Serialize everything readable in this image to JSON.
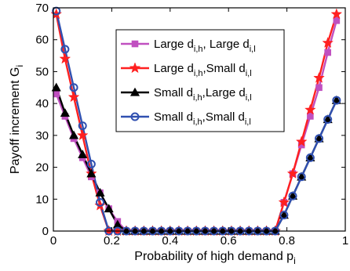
{
  "chart_data": {
    "type": "line",
    "xlabel": "Probability of high demand p",
    "xlabel_sub": "i",
    "ylabel": "Payoff increment G",
    "ylabel_sub": "i",
    "xlim": [
      0,
      1
    ],
    "ylim": [
      0,
      70
    ],
    "xticks": [
      0,
      0.2,
      0.4,
      0.6,
      0.8,
      1
    ],
    "xtick_labels": [
      "0",
      "0.2",
      "0.4",
      "0.6",
      "0.8",
      "1"
    ],
    "yticks": [
      0,
      10,
      20,
      30,
      40,
      50,
      60,
      70
    ],
    "ytick_labels": [
      "0",
      "10",
      "20",
      "30",
      "40",
      "50",
      "60",
      "70"
    ],
    "grid": false,
    "legend_position": "top-center",
    "x": [
      0.01,
      0.04,
      0.07,
      0.1,
      0.13,
      0.16,
      0.19,
      0.22,
      0.25,
      0.28,
      0.31,
      0.34,
      0.37,
      0.4,
      0.43,
      0.46,
      0.49,
      0.52,
      0.55,
      0.58,
      0.61,
      0.64,
      0.67,
      0.7,
      0.73,
      0.76,
      0.79,
      0.82,
      0.85,
      0.88,
      0.91,
      0.94,
      0.97
    ],
    "series": [
      {
        "name_main": "Large d",
        "name_sub1": "i,h",
        "name_mid": ", Large d",
        "name_sub2": "i,l",
        "color": "#c050c0",
        "marker": "square",
        "values": [
          43,
          36,
          29,
          23,
          17,
          12,
          7,
          3,
          0,
          0,
          0,
          0,
          0,
          0,
          0,
          0,
          0,
          0,
          0,
          0,
          0,
          0,
          0,
          0,
          0,
          0,
          9,
          18,
          27,
          36,
          45,
          56,
          66
        ]
      },
      {
        "name_main": "Large d",
        "name_sub1": "i,h",
        "name_mid": ",Small d",
        "name_sub2": "i,l",
        "color": "#ff2020",
        "marker": "star",
        "values": [
          68,
          54,
          42,
          30,
          18,
          8,
          0,
          0,
          0,
          0,
          0,
          0,
          0,
          0,
          0,
          0,
          0,
          0,
          0,
          0,
          0,
          0,
          0,
          0,
          0,
          0,
          9,
          18,
          28,
          38,
          48,
          59,
          68
        ]
      },
      {
        "name_main": "Small d",
        "name_sub1": "i,h",
        "name_mid": ",Large d",
        "name_sub2": "i,l",
        "color": "#000000",
        "marker": "triangle",
        "values": [
          45,
          37,
          30,
          24,
          18,
          12,
          7,
          2,
          0,
          0,
          0,
          0,
          0,
          0,
          0,
          0,
          0,
          0,
          0,
          0,
          0,
          0,
          0,
          0,
          0,
          0,
          5,
          11,
          17,
          23,
          29,
          35,
          41
        ]
      },
      {
        "name_main": "Small d",
        "name_sub1": "i,h",
        "name_mid": ",Small d",
        "name_sub2": "i,l",
        "color": "#3050b0",
        "marker": "circle",
        "values": [
          69,
          57,
          45,
          33,
          21,
          9,
          0,
          0,
          0,
          0,
          0,
          0,
          0,
          0,
          0,
          0,
          0,
          0,
          0,
          0,
          0,
          0,
          0,
          0,
          0,
          0,
          5,
          11,
          17,
          23,
          29,
          35,
          41
        ]
      }
    ]
  }
}
